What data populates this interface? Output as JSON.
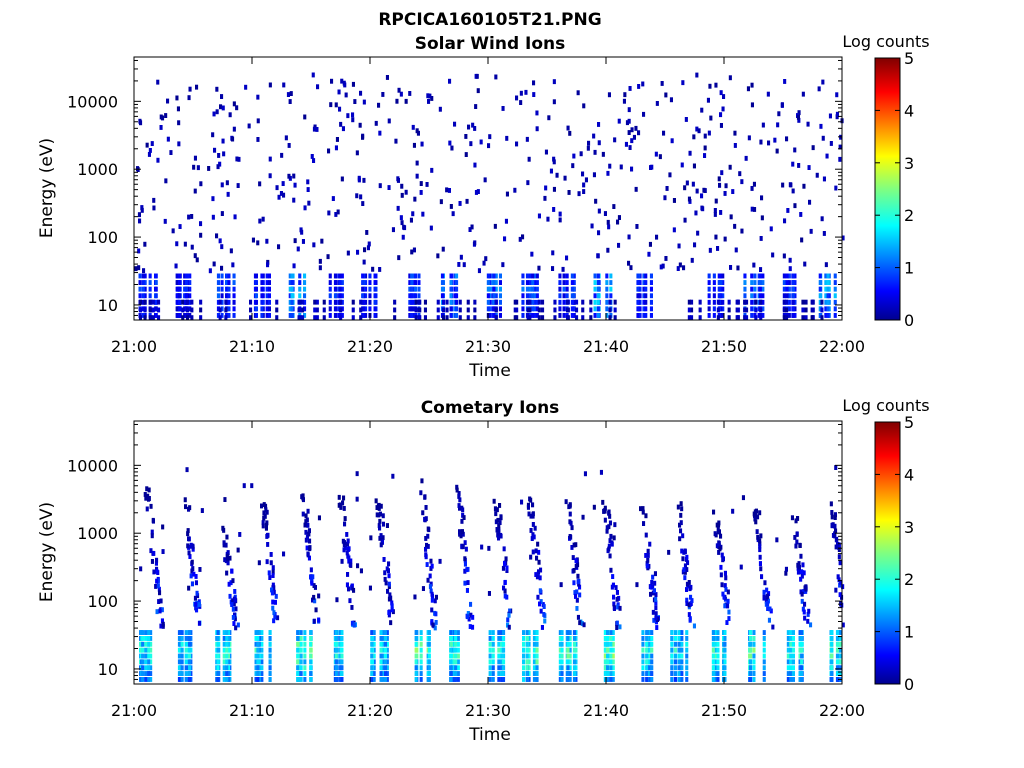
{
  "figure_title": "RPCICA160105T21.PNG",
  "colormap": {
    "stops": [
      "#00008f",
      "#0000ff",
      "#0080ff",
      "#00ffff",
      "#80ff80",
      "#ffff00",
      "#ff8000",
      "#ff0000",
      "#800000"
    ]
  },
  "chart_data": [
    {
      "type": "heatmap",
      "title": "Solar Wind Ions",
      "xlabel": "Time",
      "ylabel": "Energy (eV)",
      "x_ticks": [
        "21:00",
        "21:10",
        "21:20",
        "21:30",
        "21:40",
        "21:50",
        "22:00"
      ],
      "x_range_minutes": [
        0,
        60
      ],
      "y_scale": "log",
      "y_ticks": [
        "10",
        "100",
        "1000",
        "10000"
      ],
      "y_range_eV": [
        6,
        45000
      ],
      "colorbar": {
        "label": "Log counts",
        "ticks": [
          "0",
          "1",
          "2",
          "3",
          "4",
          "5"
        ],
        "range": [
          0,
          5
        ]
      },
      "low_energy_bursts": [
        {
          "t": 1.0,
          "log_counts": 1.0
        },
        {
          "t": 3.6,
          "log_counts": 1.2
        },
        {
          "t": 4.2,
          "log_counts": 0.8
        },
        {
          "t": 7.7,
          "log_counts": 1.1
        },
        {
          "t": 10.8,
          "log_counts": 1.0
        },
        {
          "t": 13.8,
          "log_counts": 1.7
        },
        {
          "t": 16.9,
          "log_counts": 1.0
        },
        {
          "t": 19.9,
          "log_counts": 0.9
        },
        {
          "t": 23.6,
          "log_counts": 1.1
        },
        {
          "t": 26.8,
          "log_counts": 1.4
        },
        {
          "t": 30.3,
          "log_counts": 1.3
        },
        {
          "t": 33.4,
          "log_counts": 1.2
        },
        {
          "t": 36.4,
          "log_counts": 1.0
        },
        {
          "t": 39.6,
          "log_counts": 1.8
        },
        {
          "t": 43.2,
          "log_counts": 1.0
        },
        {
          "t": 49.0,
          "log_counts": 0.9
        },
        {
          "t": 52.4,
          "log_counts": 1.3
        },
        {
          "t": 55.2,
          "log_counts": 1.0
        },
        {
          "t": 58.7,
          "log_counts": 1.6
        }
      ],
      "background": "sparse single counts from 30 eV to 25000 eV"
    },
    {
      "type": "heatmap",
      "title": "Cometary Ions",
      "xlabel": "Time",
      "ylabel": "Energy (eV)",
      "x_ticks": [
        "21:00",
        "21:10",
        "21:20",
        "21:30",
        "21:40",
        "21:50",
        "22:00"
      ],
      "x_range_minutes": [
        0,
        60
      ],
      "y_scale": "log",
      "y_ticks": [
        "10",
        "100",
        "1000",
        "10000"
      ],
      "y_range_eV": [
        6,
        45000
      ],
      "colorbar": {
        "label": "Log counts",
        "ticks": [
          "0",
          "1",
          "2",
          "3",
          "4",
          "5"
        ],
        "range": [
          0,
          5
        ]
      },
      "periodic_bursts": [
        {
          "t": 0.8,
          "peak_log_counts": 2.4,
          "max_energy_eV": 5000
        },
        {
          "t": 4.0,
          "peak_log_counts": 2.2,
          "max_energy_eV": 4000
        },
        {
          "t": 7.2,
          "peak_log_counts": 2.5,
          "max_energy_eV": 1200
        },
        {
          "t": 10.6,
          "peak_log_counts": 2.3,
          "max_energy_eV": 3000
        },
        {
          "t": 14.0,
          "peak_log_counts": 2.8,
          "max_energy_eV": 4500
        },
        {
          "t": 17.2,
          "peak_log_counts": 2.4,
          "max_energy_eV": 3500
        },
        {
          "t": 20.4,
          "peak_log_counts": 2.3,
          "max_energy_eV": 3000
        },
        {
          "t": 24.0,
          "peak_log_counts": 2.7,
          "max_energy_eV": 7000
        },
        {
          "t": 27.0,
          "peak_log_counts": 2.5,
          "max_energy_eV": 8000
        },
        {
          "t": 30.4,
          "peak_log_counts": 2.4,
          "max_energy_eV": 3000
        },
        {
          "t": 33.2,
          "peak_log_counts": 2.8,
          "max_energy_eV": 4000
        },
        {
          "t": 36.4,
          "peak_log_counts": 2.6,
          "max_energy_eV": 4000
        },
        {
          "t": 39.6,
          "peak_log_counts": 2.9,
          "max_energy_eV": 3000
        },
        {
          "t": 42.8,
          "peak_log_counts": 2.4,
          "max_energy_eV": 2500
        },
        {
          "t": 45.8,
          "peak_log_counts": 2.3,
          "max_energy_eV": 3000
        },
        {
          "t": 49.0,
          "peak_log_counts": 2.5,
          "max_energy_eV": 1500
        },
        {
          "t": 52.4,
          "peak_log_counts": 2.7,
          "max_energy_eV": 2500
        },
        {
          "t": 55.6,
          "peak_log_counts": 2.4,
          "max_energy_eV": 2000
        },
        {
          "t": 58.8,
          "peak_log_counts": 2.6,
          "max_energy_eV": 3000
        }
      ]
    }
  ]
}
